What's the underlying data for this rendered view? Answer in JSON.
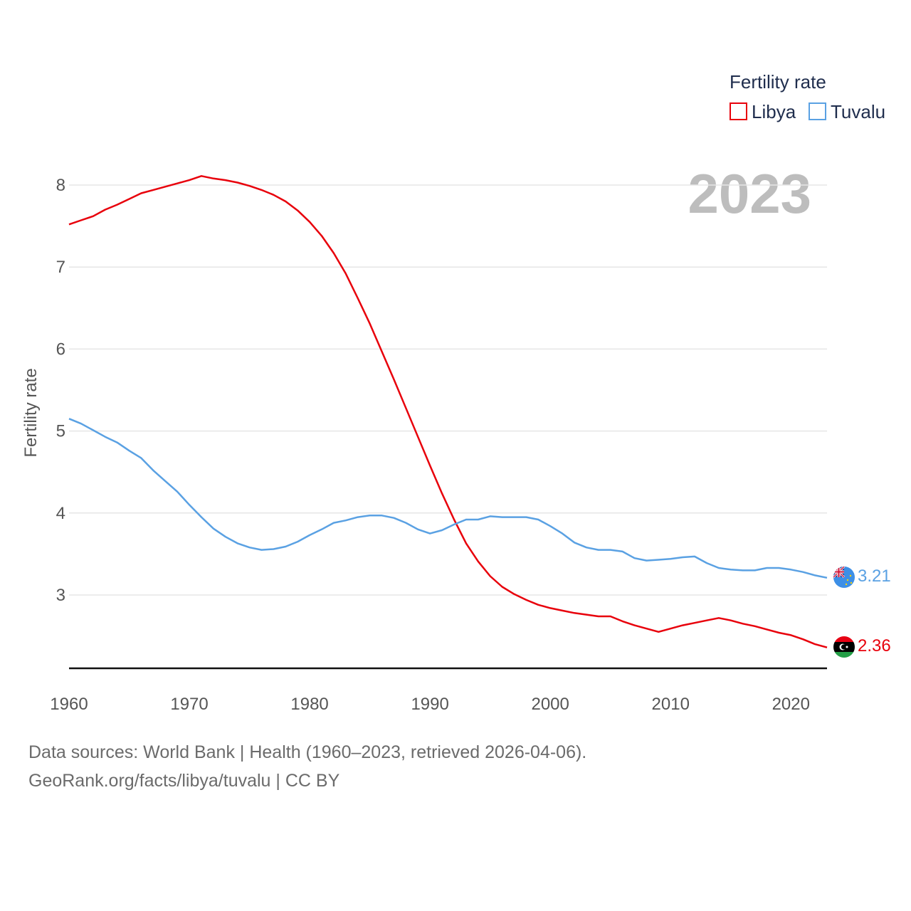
{
  "chart_data": {
    "type": "line",
    "title": "Fertility rate",
    "ylabel": "Fertility rate",
    "xlabel": "",
    "year_display": "2023",
    "xlim": [
      1960,
      2023
    ],
    "ylim": [
      2.1,
      8.6
    ],
    "yticks": [
      3,
      4,
      5,
      6,
      7,
      8
    ],
    "xticks": [
      1960,
      1970,
      1980,
      1990,
      2000,
      2010,
      2020
    ],
    "legend_position": "top-right",
    "x": [
      1960,
      1961,
      1962,
      1963,
      1964,
      1965,
      1966,
      1967,
      1968,
      1969,
      1970,
      1971,
      1972,
      1973,
      1974,
      1975,
      1976,
      1977,
      1978,
      1979,
      1980,
      1981,
      1982,
      1983,
      1984,
      1985,
      1986,
      1987,
      1988,
      1989,
      1990,
      1991,
      1992,
      1993,
      1994,
      1995,
      1996,
      1997,
      1998,
      1999,
      2000,
      2001,
      2002,
      2003,
      2004,
      2005,
      2006,
      2007,
      2008,
      2009,
      2010,
      2011,
      2012,
      2013,
      2014,
      2015,
      2016,
      2017,
      2018,
      2019,
      2020,
      2021,
      2022,
      2023
    ],
    "series": [
      {
        "name": "Libya",
        "color": "#e8000b",
        "end_label": "2.36",
        "flag": "libya",
        "values": [
          7.52,
          7.57,
          7.62,
          7.7,
          7.76,
          7.83,
          7.9,
          7.94,
          7.98,
          8.02,
          8.06,
          8.11,
          8.08,
          8.06,
          8.03,
          7.99,
          7.94,
          7.88,
          7.8,
          7.69,
          7.55,
          7.38,
          7.17,
          6.92,
          6.62,
          6.31,
          5.97,
          5.63,
          5.28,
          4.93,
          4.58,
          4.24,
          3.92,
          3.63,
          3.41,
          3.23,
          3.1,
          3.01,
          2.94,
          2.88,
          2.84,
          2.81,
          2.78,
          2.76,
          2.74,
          2.74,
          2.68,
          2.63,
          2.59,
          2.55,
          2.59,
          2.63,
          2.66,
          2.69,
          2.72,
          2.69,
          2.65,
          2.62,
          2.58,
          2.54,
          2.51,
          2.46,
          2.4,
          2.36
        ]
      },
      {
        "name": "Tuvalu",
        "color": "#5aa1e3",
        "end_label": "3.21",
        "flag": "tuvalu",
        "values": [
          5.15,
          5.09,
          5.01,
          4.93,
          4.86,
          4.76,
          4.67,
          4.52,
          4.39,
          4.26,
          4.1,
          3.95,
          3.81,
          3.71,
          3.63,
          3.58,
          3.55,
          3.56,
          3.59,
          3.65,
          3.73,
          3.8,
          3.88,
          3.91,
          3.95,
          3.97,
          3.97,
          3.94,
          3.88,
          3.8,
          3.75,
          3.79,
          3.86,
          3.92,
          3.92,
          3.96,
          3.95,
          3.95,
          3.95,
          3.92,
          3.84,
          3.75,
          3.64,
          3.58,
          3.55,
          3.55,
          3.53,
          3.45,
          3.42,
          3.43,
          3.44,
          3.46,
          3.47,
          3.39,
          3.33,
          3.31,
          3.3,
          3.3,
          3.33,
          3.33,
          3.31,
          3.28,
          3.24,
          3.21
        ]
      }
    ]
  },
  "footer": {
    "line1": "Data sources: World Bank | Health (1960–2023, retrieved 2026-04-06).",
    "line2": "GeoRank.org/facts/libya/tuvalu | CC BY"
  }
}
